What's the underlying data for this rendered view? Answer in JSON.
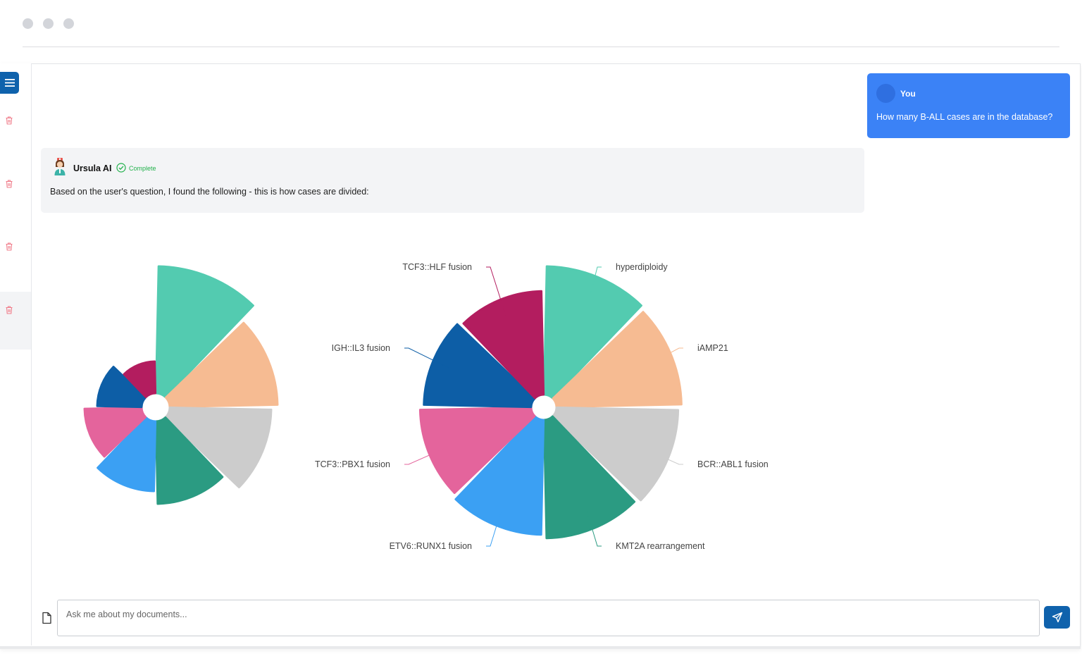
{
  "window": {
    "controls": [
      "close",
      "minimize",
      "maximize"
    ]
  },
  "sidebar": {
    "menu_icon": "hamburger-menu-icon",
    "delete_icon": "trash-icon",
    "conversation_count": 4,
    "accent_color": "#0f62ac",
    "delete_color": "#f07c8a"
  },
  "chat": {
    "user": {
      "name": "You",
      "message": "How many B-ALL cases are in the database?",
      "bubble_color": "#3b82f6"
    },
    "assistant": {
      "name": "Ursula AI",
      "status": "Complete",
      "status_color": "#22b14c",
      "message": "Based on the user's question, I found the following - this is how cases are divided:"
    }
  },
  "chart_data": [
    {
      "type": "pie",
      "variant": "nightingale-rose-radius",
      "title": "",
      "legend": "none",
      "categories": [
        "hyperdiploidy",
        "iAMP21",
        "BCR::ABL1 fusion",
        "KMT2A rearrangement",
        "ETV6::RUNX1 fusion",
        "TCF3::PBX1 fusion",
        "IGH::IL3 fusion",
        "TCF3::HLF fusion"
      ],
      "values": [
        100,
        85,
        80,
        65,
        55,
        45,
        35,
        25
      ],
      "colors": [
        "#53cbb0",
        "#f6bb92",
        "#cccccc",
        "#2b9b82",
        "#3ba0f3",
        "#e4649c",
        "#0d5ea6",
        "#b31d5f"
      ]
    },
    {
      "type": "pie",
      "variant": "nightingale-rose-area",
      "title": "",
      "legend": "none",
      "categories": [
        "hyperdiploidy",
        "iAMP21",
        "BCR::ABL1 fusion",
        "KMT2A rearrangement",
        "ETV6::RUNX1 fusion",
        "TCF3::PBX1 fusion",
        "IGH::IL3 fusion",
        "TCF3::HLF fusion"
      ],
      "values": [
        100,
        95,
        90,
        85,
        80,
        75,
        70,
        65
      ],
      "colors": [
        "#53cbb0",
        "#f6bb92",
        "#cccccc",
        "#2b9b82",
        "#3ba0f3",
        "#e4649c",
        "#0d5ea6",
        "#b31d5f"
      ]
    }
  ],
  "composer": {
    "placeholder": "Ask me about my documents...",
    "value": "",
    "attach_icon": "file-attach-icon",
    "send_icon": "send-icon"
  }
}
